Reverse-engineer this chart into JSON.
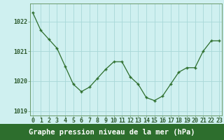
{
  "x": [
    0,
    1,
    2,
    3,
    4,
    5,
    6,
    7,
    8,
    9,
    10,
    11,
    12,
    13,
    14,
    15,
    16,
    17,
    18,
    19,
    20,
    21,
    22,
    23
  ],
  "y": [
    1022.3,
    1021.7,
    1021.4,
    1021.1,
    1020.5,
    1019.9,
    1019.65,
    1019.8,
    1020.1,
    1020.4,
    1020.65,
    1020.65,
    1020.15,
    1019.9,
    1019.45,
    1019.35,
    1019.5,
    1019.9,
    1020.3,
    1020.45,
    1020.45,
    1021.0,
    1021.35,
    1021.35
  ],
  "ylim": [
    1018.85,
    1022.6
  ],
  "yticks": [
    1019,
    1020,
    1021,
    1022
  ],
  "xticks": [
    0,
    1,
    2,
    3,
    4,
    5,
    6,
    7,
    8,
    9,
    10,
    11,
    12,
    13,
    14,
    15,
    16,
    17,
    18,
    19,
    20,
    21,
    22,
    23
  ],
  "xlabel": "Graphe pression niveau de la mer (hPa)",
  "line_color": "#2d6e2d",
  "marker_color": "#2d6e2d",
  "bg_color": "#cff0f0",
  "grid_color": "#a8d8d8",
  "border_color": "#6a9a6a",
  "xlabel_bg": "#2d6e2d",
  "xlabel_fg": "#ffffff",
  "tick_label_color": "#2d5a2d",
  "tick_fontsize": 6.0,
  "xlabel_fontsize": 7.5
}
